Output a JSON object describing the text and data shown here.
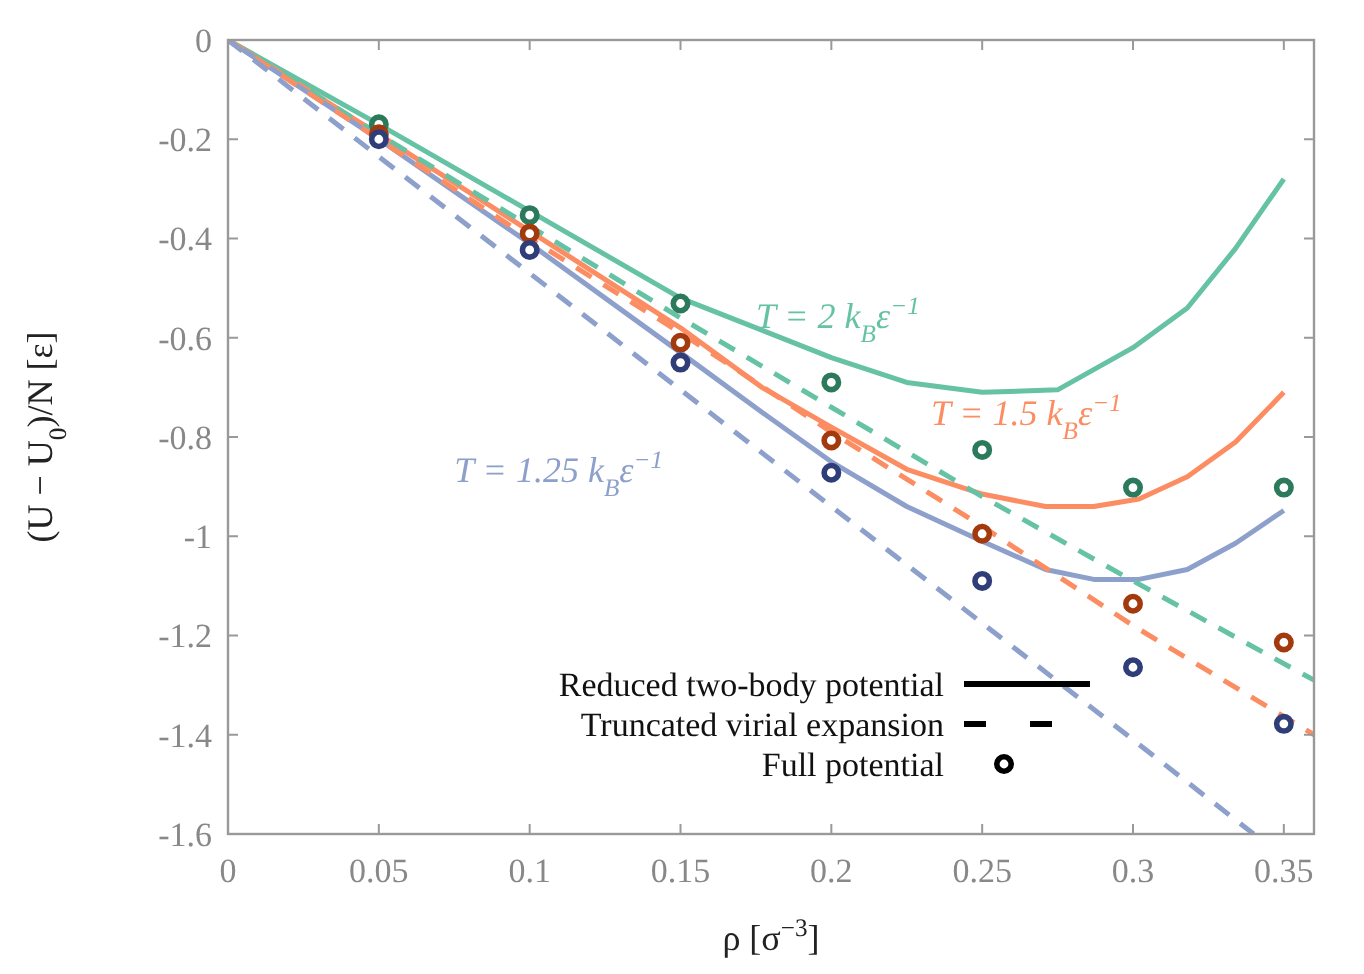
{
  "chart_data": {
    "type": "line",
    "xlabel": "ρ  [σ$^{−3}$]",
    "ylabel": "(U − U$_{0}$)/N  [ε]",
    "xlim": [
      0,
      0.36
    ],
    "ylim": [
      -1.6,
      0
    ],
    "xticks": [
      0,
      0.05,
      0.1,
      0.15,
      0.2,
      0.25,
      0.3,
      0.35
    ],
    "yticks": [
      0,
      -0.2,
      -0.4,
      -0.6,
      -0.8,
      -1,
      -1.2,
      -1.4,
      -1.6
    ],
    "grid": false,
    "annotations": [
      "Reduced two-body potential",
      "Truncated virial expansion",
      "Full potential"
    ],
    "series": [
      {
        "name": "T = 2 k$_{B}$ε$^{−1}$",
        "line_style": "solid",
        "color": "#66c2a5",
        "x": [
          0,
          0.05,
          0.1,
          0.15,
          0.2,
          0.225,
          0.25,
          0.275,
          0.3,
          0.318,
          0.334,
          0.35
        ],
        "values": [
          0,
          -0.17,
          -0.345,
          -0.52,
          -0.64,
          -0.69,
          -0.71,
          -0.705,
          -0.62,
          -0.54,
          -0.42,
          -0.28
        ]
      },
      {
        "name": "T = 1.5 k$_{B}$ε$^{−1}$",
        "line_style": "solid",
        "color": "#fc8d62",
        "x": [
          0,
          0.05,
          0.1,
          0.15,
          0.177,
          0.2,
          0.225,
          0.25,
          0.271,
          0.287,
          0.302,
          0.318,
          0.334,
          0.35
        ],
        "values": [
          0,
          -0.19,
          -0.385,
          -0.58,
          -0.7,
          -0.78,
          -0.865,
          -0.915,
          -0.94,
          -0.94,
          -0.925,
          -0.88,
          -0.81,
          -0.71
        ]
      },
      {
        "name": "T = 1.25 k$_{B}$ε$^{−1}$",
        "line_style": "solid",
        "color": "#8da0cb",
        "x": [
          0,
          0.05,
          0.1,
          0.15,
          0.177,
          0.2,
          0.225,
          0.25,
          0.271,
          0.287,
          0.302,
          0.318,
          0.334,
          0.35
        ],
        "values": [
          0,
          -0.2,
          -0.41,
          -0.63,
          -0.75,
          -0.85,
          -0.94,
          -1.01,
          -1.067,
          -1.087,
          -1.087,
          -1.067,
          -1.014,
          -0.948
        ]
      },
      {
        "type": "line",
        "line_style": "dashed",
        "color": "#66c2a5",
        "x": [
          0,
          0.05,
          0.1,
          0.15,
          0.2,
          0.25,
          0.3,
          0.36
        ],
        "values": [
          0,
          -0.19,
          -0.375,
          -0.56,
          -0.74,
          -0.92,
          -1.09,
          -1.29
        ]
      },
      {
        "type": "line",
        "line_style": "dashed",
        "color": "#fc8d62",
        "x": [
          0,
          0.05,
          0.1,
          0.15,
          0.2,
          0.25,
          0.3,
          0.36
        ],
        "values": [
          0,
          -0.2,
          -0.4,
          -0.59,
          -0.79,
          -0.98,
          -1.18,
          -1.4
        ]
      },
      {
        "type": "line",
        "line_style": "dashed",
        "color": "#8da0cb",
        "x": [
          0,
          0.05,
          0.1,
          0.15,
          0.2,
          0.25,
          0.3,
          0.34
        ],
        "values": [
          0,
          -0.235,
          -0.47,
          -0.705,
          -0.94,
          -1.175,
          -1.41,
          -1.6
        ]
      },
      {
        "type": "scatter",
        "marker": "circle",
        "color": "#2b7a5c",
        "x": [
          0.05,
          0.1,
          0.15,
          0.2,
          0.25,
          0.3,
          0.35
        ],
        "values": [
          -0.17,
          -0.353,
          -0.531,
          -0.69,
          -0.826,
          -0.902,
          -0.902
        ]
      },
      {
        "type": "scatter",
        "marker": "circle",
        "color": "#a33a0e",
        "x": [
          0.05,
          0.1,
          0.15,
          0.2,
          0.25,
          0.3,
          0.35
        ],
        "values": [
          -0.19,
          -0.39,
          -0.61,
          -0.807,
          -0.995,
          -1.136,
          -1.214
        ]
      },
      {
        "type": "scatter",
        "marker": "circle",
        "color": "#2f3e78",
        "x": [
          0.05,
          0.1,
          0.15,
          0.2,
          0.25,
          0.3,
          0.35
        ],
        "values": [
          -0.2,
          -0.423,
          -0.65,
          -0.872,
          -1.09,
          -1.264,
          -1.378
        ]
      }
    ]
  }
}
